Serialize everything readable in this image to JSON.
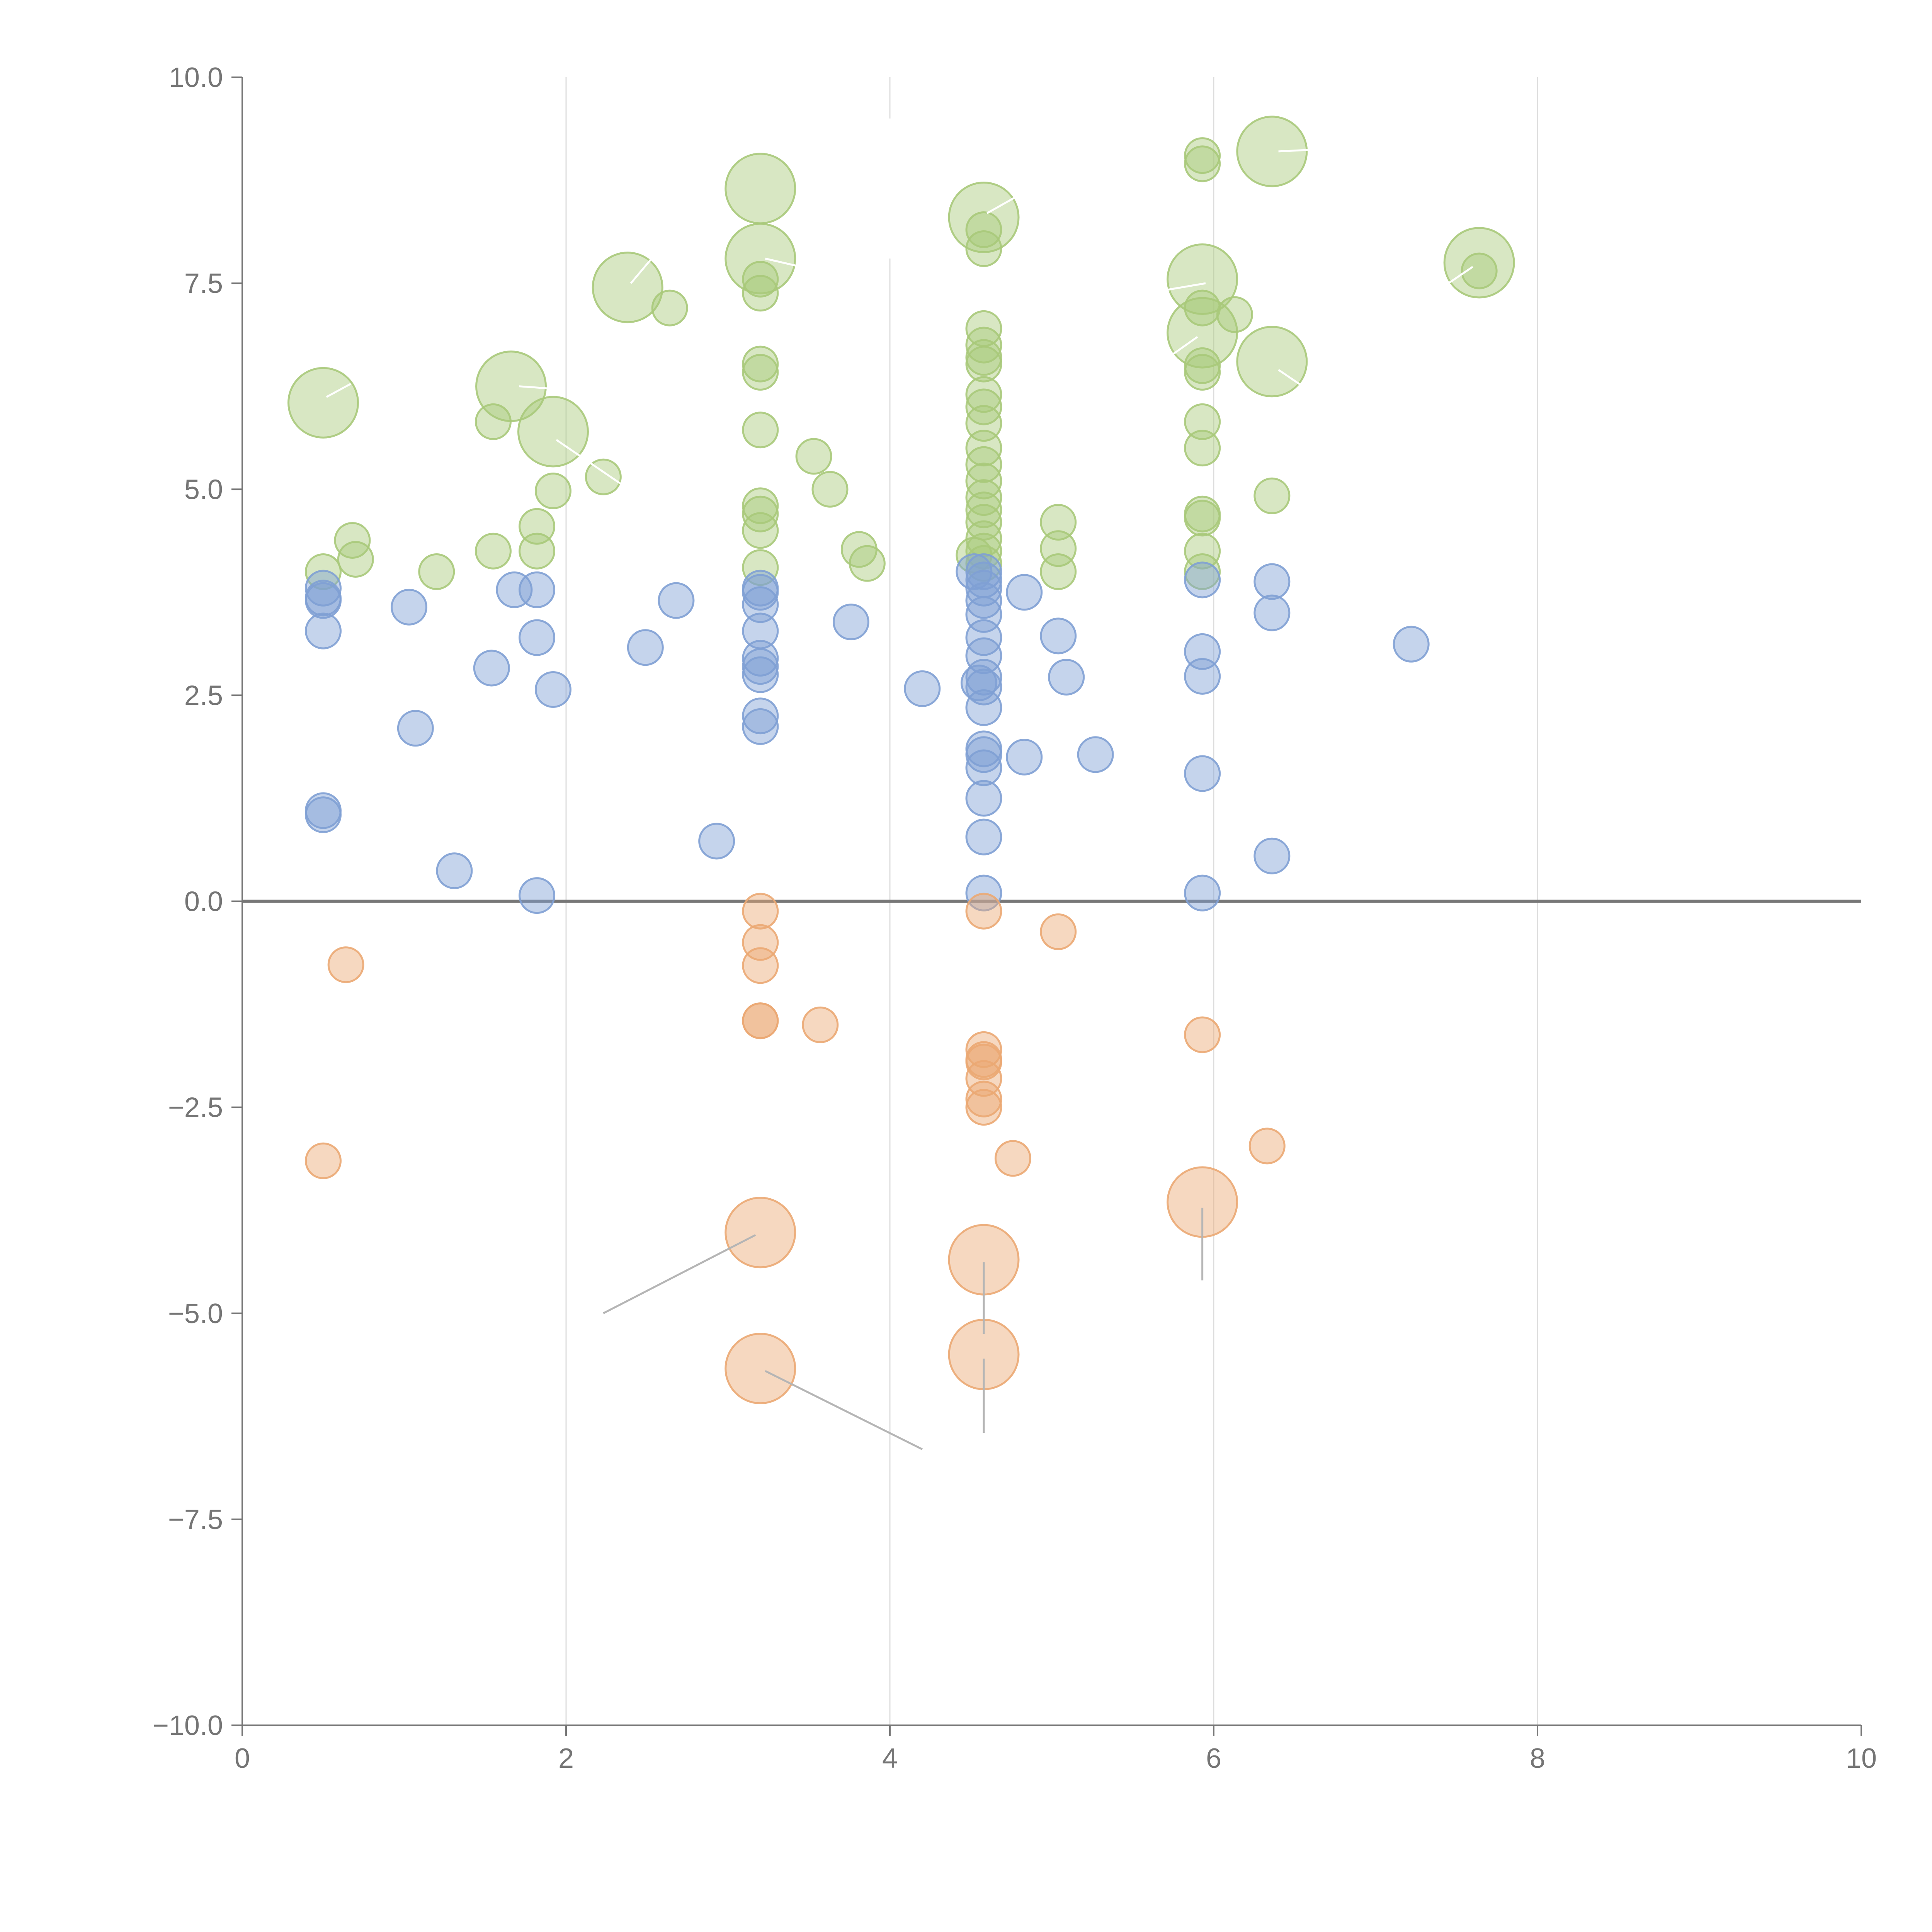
{
  "chart_data": {
    "type": "scatter",
    "title": "",
    "xlabel": "",
    "ylabel": "",
    "xlim": [
      0,
      10
    ],
    "ylim": [
      -10,
      10
    ],
    "x_ticks": [
      0,
      2,
      4,
      6,
      8,
      10
    ],
    "x_tick_labels": [
      "0",
      "2",
      "4",
      "6",
      "8",
      "10"
    ],
    "y_ticks": [
      10,
      7.5,
      5,
      2.5,
      0,
      -2.5,
      -5,
      -7.5,
      -10
    ],
    "y_tick_labels": [
      "10.0",
      "7.5",
      "5.0",
      "2.5",
      "0.0",
      "−2.5",
      "−5.0",
      "−7.5",
      "−10.0"
    ],
    "grid": "vertical",
    "baseline_y": 0,
    "legend": "none",
    "series": [
      {
        "name": "green",
        "color": "#a9c97a",
        "points": [
          {
            "x": 0.5,
            "y": 6.05,
            "r": 3
          },
          {
            "x": 1.66,
            "y": 6.25,
            "r": 3
          },
          {
            "x": 1.92,
            "y": 5.7,
            "r": 3
          },
          {
            "x": 2.38,
            "y": 7.45,
            "r": 3
          },
          {
            "x": 3.2,
            "y": 8.65,
            "r": 3
          },
          {
            "x": 3.2,
            "y": 7.8,
            "r": 3
          },
          {
            "x": 4.58,
            "y": 8.3,
            "r": 3
          },
          {
            "x": 5.93,
            "y": 7.55,
            "r": 3
          },
          {
            "x": 5.93,
            "y": 6.9,
            "r": 3
          },
          {
            "x": 6.36,
            "y": 9.1,
            "r": 3
          },
          {
            "x": 6.36,
            "y": 6.55,
            "r": 3
          },
          {
            "x": 7.64,
            "y": 7.75,
            "r": 3
          },
          {
            "x": 0.5,
            "y": 4.0,
            "r": 1
          },
          {
            "x": 0.68,
            "y": 4.38,
            "r": 1
          },
          {
            "x": 0.7,
            "y": 4.15,
            "r": 1
          },
          {
            "x": 1.2,
            "y": 4.0,
            "r": 1
          },
          {
            "x": 1.55,
            "y": 5.82,
            "r": 1
          },
          {
            "x": 1.55,
            "y": 4.25,
            "r": 1
          },
          {
            "x": 1.82,
            "y": 4.55,
            "r": 1
          },
          {
            "x": 1.82,
            "y": 4.25,
            "r": 1
          },
          {
            "x": 1.92,
            "y": 4.98,
            "r": 1
          },
          {
            "x": 2.23,
            "y": 5.15,
            "r": 1
          },
          {
            "x": 2.64,
            "y": 7.2,
            "r": 1
          },
          {
            "x": 3.2,
            "y": 7.55,
            "r": 1
          },
          {
            "x": 3.2,
            "y": 7.38,
            "r": 1
          },
          {
            "x": 3.2,
            "y": 6.52,
            "r": 1
          },
          {
            "x": 3.2,
            "y": 6.42,
            "r": 1
          },
          {
            "x": 3.2,
            "y": 5.72,
            "r": 1
          },
          {
            "x": 3.2,
            "y": 4.8,
            "r": 1
          },
          {
            "x": 3.2,
            "y": 4.7,
            "r": 1
          },
          {
            "x": 3.2,
            "y": 4.5,
            "r": 1
          },
          {
            "x": 3.2,
            "y": 4.05,
            "r": 1
          },
          {
            "x": 3.53,
            "y": 5.4,
            "r": 1
          },
          {
            "x": 3.63,
            "y": 5.0,
            "r": 1
          },
          {
            "x": 3.81,
            "y": 4.27,
            "r": 1
          },
          {
            "x": 3.86,
            "y": 4.1,
            "r": 1
          },
          {
            "x": 4.58,
            "y": 8.15,
            "r": 1
          },
          {
            "x": 4.58,
            "y": 7.92,
            "r": 1
          },
          {
            "x": 4.58,
            "y": 6.95,
            "r": 1
          },
          {
            "x": 4.58,
            "y": 6.75,
            "r": 1
          },
          {
            "x": 4.58,
            "y": 6.6,
            "r": 1
          },
          {
            "x": 4.58,
            "y": 6.52,
            "r": 1
          },
          {
            "x": 4.58,
            "y": 6.15,
            "r": 1
          },
          {
            "x": 4.58,
            "y": 6.0,
            "r": 1
          },
          {
            "x": 4.58,
            "y": 5.8,
            "r": 1
          },
          {
            "x": 4.58,
            "y": 5.5,
            "r": 1
          },
          {
            "x": 4.58,
            "y": 5.3,
            "r": 1
          },
          {
            "x": 4.58,
            "y": 5.1,
            "r": 1
          },
          {
            "x": 4.58,
            "y": 4.9,
            "r": 1
          },
          {
            "x": 4.58,
            "y": 4.75,
            "r": 1
          },
          {
            "x": 4.58,
            "y": 4.6,
            "r": 1
          },
          {
            "x": 4.58,
            "y": 4.4,
            "r": 1
          },
          {
            "x": 4.58,
            "y": 4.25,
            "r": 1
          },
          {
            "x": 4.52,
            "y": 4.2,
            "r": 1
          },
          {
            "x": 4.58,
            "y": 4.1,
            "r": 1
          },
          {
            "x": 5.04,
            "y": 4.6,
            "r": 1
          },
          {
            "x": 5.04,
            "y": 4.28,
            "r": 1
          },
          {
            "x": 5.04,
            "y": 4.0,
            "r": 1
          },
          {
            "x": 5.93,
            "y": 9.05,
            "r": 1
          },
          {
            "x": 5.93,
            "y": 8.95,
            "r": 1
          },
          {
            "x": 5.93,
            "y": 7.2,
            "r": 1
          },
          {
            "x": 6.13,
            "y": 7.12,
            "r": 1
          },
          {
            "x": 5.93,
            "y": 6.5,
            "r": 1
          },
          {
            "x": 5.93,
            "y": 6.42,
            "r": 1
          },
          {
            "x": 5.93,
            "y": 5.82,
            "r": 1
          },
          {
            "x": 5.93,
            "y": 5.5,
            "r": 1
          },
          {
            "x": 5.93,
            "y": 4.7,
            "r": 1
          },
          {
            "x": 5.93,
            "y": 4.65,
            "r": 1
          },
          {
            "x": 5.93,
            "y": 4.25,
            "r": 1
          },
          {
            "x": 5.93,
            "y": 4.0,
            "r": 1
          },
          {
            "x": 6.36,
            "y": 4.92,
            "r": 1
          },
          {
            "x": 7.64,
            "y": 7.65,
            "r": 1
          }
        ]
      },
      {
        "name": "blue",
        "color": "#7fa0d4",
        "points": [
          {
            "x": 0.5,
            "y": 3.8,
            "r": 1
          },
          {
            "x": 0.5,
            "y": 3.68,
            "r": 1
          },
          {
            "x": 0.5,
            "y": 3.65,
            "r": 1
          },
          {
            "x": 0.5,
            "y": 3.28,
            "r": 1
          },
          {
            "x": 0.5,
            "y": 1.1,
            "r": 1
          },
          {
            "x": 0.5,
            "y": 1.05,
            "r": 1
          },
          {
            "x": 1.03,
            "y": 3.57,
            "r": 1
          },
          {
            "x": 1.07,
            "y": 2.1,
            "r": 1
          },
          {
            "x": 1.31,
            "y": 0.37,
            "r": 1
          },
          {
            "x": 1.54,
            "y": 2.83,
            "r": 1
          },
          {
            "x": 1.68,
            "y": 3.78,
            "r": 1
          },
          {
            "x": 1.82,
            "y": 3.78,
            "r": 1
          },
          {
            "x": 1.82,
            "y": 3.2,
            "r": 1
          },
          {
            "x": 1.92,
            "y": 2.57,
            "r": 1
          },
          {
            "x": 1.82,
            "y": 0.07,
            "r": 1
          },
          {
            "x": 2.49,
            "y": 3.08,
            "r": 1
          },
          {
            "x": 2.68,
            "y": 3.65,
            "r": 1
          },
          {
            "x": 2.93,
            "y": 0.73,
            "r": 1
          },
          {
            "x": 3.2,
            "y": 3.8,
            "r": 1
          },
          {
            "x": 3.2,
            "y": 3.75,
            "r": 1
          },
          {
            "x": 3.2,
            "y": 3.6,
            "r": 1
          },
          {
            "x": 3.2,
            "y": 3.28,
            "r": 1
          },
          {
            "x": 3.2,
            "y": 2.95,
            "r": 1
          },
          {
            "x": 3.2,
            "y": 2.85,
            "r": 1
          },
          {
            "x": 3.2,
            "y": 2.75,
            "r": 1
          },
          {
            "x": 3.2,
            "y": 2.25,
            "r": 1
          },
          {
            "x": 3.2,
            "y": 2.12,
            "r": 1
          },
          {
            "x": 3.76,
            "y": 3.39,
            "r": 1
          },
          {
            "x": 4.2,
            "y": 2.58,
            "r": 1
          },
          {
            "x": 4.52,
            "y": 4.0,
            "r": 1
          },
          {
            "x": 4.58,
            "y": 4.0,
            "r": 1
          },
          {
            "x": 4.58,
            "y": 3.9,
            "r": 1
          },
          {
            "x": 4.58,
            "y": 3.8,
            "r": 1
          },
          {
            "x": 4.58,
            "y": 3.65,
            "r": 1
          },
          {
            "x": 4.58,
            "y": 3.48,
            "r": 1
          },
          {
            "x": 4.58,
            "y": 3.2,
            "r": 1
          },
          {
            "x": 4.58,
            "y": 2.98,
            "r": 1
          },
          {
            "x": 4.58,
            "y": 2.72,
            "r": 1
          },
          {
            "x": 4.55,
            "y": 2.65,
            "r": 1
          },
          {
            "x": 4.58,
            "y": 2.6,
            "r": 1
          },
          {
            "x": 4.58,
            "y": 2.35,
            "r": 1
          },
          {
            "x": 4.58,
            "y": 1.85,
            "r": 1
          },
          {
            "x": 4.58,
            "y": 1.78,
            "r": 1
          },
          {
            "x": 4.58,
            "y": 1.62,
            "r": 1
          },
          {
            "x": 4.58,
            "y": 1.25,
            "r": 1
          },
          {
            "x": 4.58,
            "y": 0.78,
            "r": 1
          },
          {
            "x": 4.58,
            "y": 0.1,
            "r": 1
          },
          {
            "x": 4.83,
            "y": 3.75,
            "r": 1
          },
          {
            "x": 4.83,
            "y": 1.75,
            "r": 1
          },
          {
            "x": 5.04,
            "y": 3.22,
            "r": 1
          },
          {
            "x": 5.09,
            "y": 2.72,
            "r": 1
          },
          {
            "x": 5.27,
            "y": 1.78,
            "r": 1
          },
          {
            "x": 5.93,
            "y": 3.9,
            "r": 1
          },
          {
            "x": 5.93,
            "y": 3.03,
            "r": 1
          },
          {
            "x": 5.93,
            "y": 2.73,
            "r": 1
          },
          {
            "x": 5.93,
            "y": 1.55,
            "r": 1
          },
          {
            "x": 5.93,
            "y": 0.1,
            "r": 1
          },
          {
            "x": 6.36,
            "y": 3.88,
            "r": 1
          },
          {
            "x": 6.36,
            "y": 3.5,
            "r": 1
          },
          {
            "x": 6.36,
            "y": 0.55,
            "r": 1
          },
          {
            "x": 7.22,
            "y": 3.12,
            "r": 1
          }
        ]
      },
      {
        "name": "orange",
        "color": "#eba873",
        "points": [
          {
            "x": 0.64,
            "y": -0.77,
            "r": 1
          },
          {
            "x": 0.5,
            "y": -3.15,
            "r": 1
          },
          {
            "x": 3.2,
            "y": -0.12,
            "r": 1
          },
          {
            "x": 3.2,
            "y": -0.5,
            "r": 1
          },
          {
            "x": 3.2,
            "y": -0.78,
            "r": 1
          },
          {
            "x": 3.2,
            "y": -1.45,
            "r": 1
          },
          {
            "x": 3.2,
            "y": -1.45,
            "r": 1
          },
          {
            "x": 3.57,
            "y": -1.5,
            "r": 1
          },
          {
            "x": 4.58,
            "y": -0.12,
            "r": 1
          },
          {
            "x": 5.04,
            "y": -0.37,
            "r": 1
          },
          {
            "x": 4.58,
            "y": -1.8,
            "r": 1
          },
          {
            "x": 4.58,
            "y": -1.92,
            "r": 1
          },
          {
            "x": 4.58,
            "y": -1.95,
            "r": 1
          },
          {
            "x": 4.58,
            "y": -2.15,
            "r": 1
          },
          {
            "x": 4.58,
            "y": -2.4,
            "r": 1
          },
          {
            "x": 4.58,
            "y": -2.5,
            "r": 1
          },
          {
            "x": 4.76,
            "y": -3.12,
            "r": 1
          },
          {
            "x": 5.93,
            "y": -1.62,
            "r": 1
          },
          {
            "x": 6.33,
            "y": -2.97,
            "r": 1
          },
          {
            "x": 3.2,
            "y": -4.02,
            "r": 3
          },
          {
            "x": 3.2,
            "y": -5.67,
            "r": 3
          },
          {
            "x": 4.58,
            "y": -4.35,
            "r": 3
          },
          {
            "x": 4.58,
            "y": -5.5,
            "r": 3
          },
          {
            "x": 5.93,
            "y": -3.65,
            "r": 3
          }
        ]
      }
    ],
    "annotations": [
      {
        "from": [
          0.52,
          6.12
        ],
        "to": [
          0.67,
          6.28
        ],
        "color": "#ffffff"
      },
      {
        "from": [
          1.71,
          6.25
        ],
        "to": [
          1.92,
          6.22
        ],
        "color": "#ffffff"
      },
      {
        "from": [
          1.94,
          5.6
        ],
        "to": [
          2.35,
          5.05
        ],
        "color": "#ffffff"
      },
      {
        "from": [
          2.4,
          7.5
        ],
        "to": [
          2.55,
          7.85
        ],
        "color": "#ffffff"
      },
      {
        "from": [
          3.23,
          7.8
        ],
        "to": [
          3.45,
          7.7
        ],
        "color": "#ffffff"
      },
      {
        "from": [
          4.6,
          8.35
        ],
        "to": [
          4.78,
          8.55
        ],
        "color": "#ffffff"
      },
      {
        "from": [
          5.95,
          7.5
        ],
        "to": [
          5.65,
          7.4
        ],
        "color": "#ffffff"
      },
      {
        "from": [
          5.9,
          6.85
        ],
        "to": [
          5.72,
          6.6
        ],
        "color": "#ffffff"
      },
      {
        "from": [
          6.4,
          9.1
        ],
        "to": [
          6.6,
          9.12
        ],
        "color": "#ffffff"
      },
      {
        "from": [
          6.4,
          6.45
        ],
        "to": [
          6.55,
          6.25
        ],
        "color": "#ffffff"
      },
      {
        "from": [
          7.6,
          7.7
        ],
        "to": [
          7.45,
          7.5
        ],
        "color": "#ffffff"
      },
      {
        "from": [
          4.0,
          9.5
        ],
        "to": [
          4.0,
          7.8
        ],
        "color": "#ffffff"
      },
      {
        "from": [
          3.17,
          -4.05
        ],
        "to": [
          2.23,
          -5.0
        ],
        "color": "#b5b5b5"
      },
      {
        "from": [
          3.23,
          -5.7
        ],
        "to": [
          4.2,
          -6.65
        ],
        "color": "#b5b5b5"
      },
      {
        "from": [
          4.58,
          -4.38
        ],
        "to": [
          4.58,
          -5.25
        ],
        "color": "#b5b5b5"
      },
      {
        "from": [
          4.58,
          -5.55
        ],
        "to": [
          4.58,
          -6.45
        ],
        "color": "#b5b5b5"
      },
      {
        "from": [
          5.93,
          -3.72
        ],
        "to": [
          5.93,
          -4.6
        ],
        "color": "#b5b5b5"
      }
    ]
  }
}
